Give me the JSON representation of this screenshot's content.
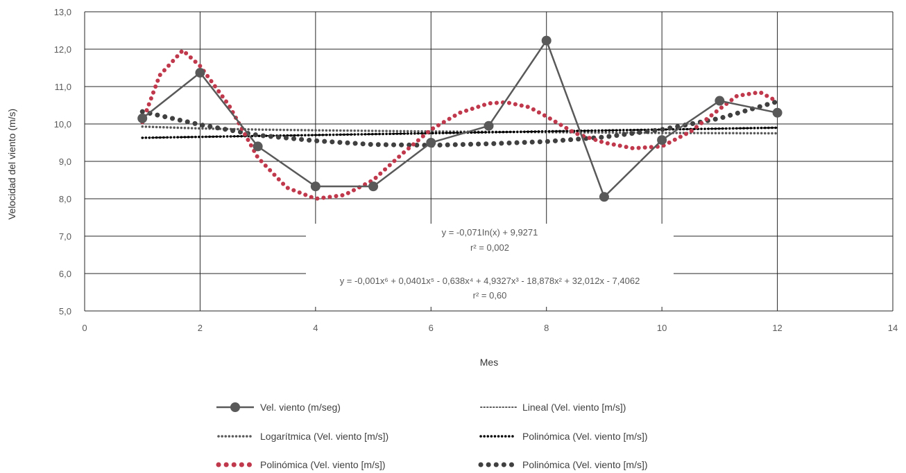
{
  "chart_data": {
    "type": "line",
    "xlabel": "Mes",
    "ylabel": "Velocidad del viento (m/s)",
    "xlim": [
      0,
      14
    ],
    "ylim": [
      5.0,
      13.0
    ],
    "x_ticks": [
      "0",
      "2",
      "4",
      "6",
      "8",
      "10",
      "12",
      "14"
    ],
    "y_ticks": [
      "5,0",
      "6,0",
      "7,0",
      "8,0",
      "9,0",
      "10,0",
      "11,0",
      "12,0",
      "13,0"
    ],
    "grid": true,
    "legend_position": "bottom",
    "series": [
      {
        "name": "Vel. viento (m/seg)",
        "kind": "data",
        "color": "#595959",
        "x": [
          1,
          2,
          3,
          4,
          5,
          6,
          7,
          8,
          9,
          10,
          11,
          12
        ],
        "y": [
          10.15,
          11.37,
          9.4,
          8.33,
          8.33,
          9.5,
          9.95,
          12.23,
          8.05,
          9.57,
          10.62,
          10.3
        ]
      },
      {
        "name": "Lineal (Vel. viento [m/s])",
        "kind": "trend",
        "color": "#000000",
        "x": [
          1,
          12
        ],
        "y": [
          9.63,
          9.9
        ]
      },
      {
        "name": "Logarítmica (Vel. viento [m/s])",
        "kind": "trend",
        "color": "#595959",
        "x": [
          1,
          2,
          3,
          4,
          6,
          8,
          10,
          12
        ],
        "y": [
          9.93,
          9.88,
          9.85,
          9.83,
          9.8,
          9.78,
          9.76,
          9.75
        ]
      },
      {
        "name": "Polinómica (Vel. viento [m/s])",
        "kind": "trend",
        "color": "#C0384B",
        "x": [
          1,
          1.3,
          1.7,
          2,
          2.5,
          3,
          3.5,
          4,
          4.5,
          5,
          5.5,
          6,
          6.5,
          7,
          7.3,
          7.7,
          8,
          8.5,
          9,
          9.5,
          10,
          10.5,
          11,
          11.3,
          11.7,
          12
        ],
        "y": [
          10.05,
          11.3,
          11.97,
          11.55,
          10.5,
          9.1,
          8.3,
          8.0,
          8.1,
          8.5,
          9.2,
          9.85,
          10.3,
          10.55,
          10.58,
          10.45,
          10.2,
          9.75,
          9.5,
          9.35,
          9.4,
          9.8,
          10.4,
          10.75,
          10.85,
          10.6
        ]
      },
      {
        "name": "Polinómica (Vel. viento [m/s])",
        "kind": "trend",
        "color": "#404040",
        "x": [
          1,
          2,
          3,
          4,
          5,
          6,
          7,
          8,
          9,
          10,
          11,
          12
        ],
        "y": [
          10.33,
          9.98,
          9.7,
          9.55,
          9.45,
          9.43,
          9.47,
          9.53,
          9.65,
          9.85,
          10.15,
          10.6
        ]
      },
      {
        "name": "Polinómica (Vel. viento [m/s])",
        "kind": "trend",
        "color": "#000000",
        "x": [
          1,
          12
        ],
        "y": [
          9.63,
          9.9
        ]
      }
    ],
    "annotations": [
      {
        "lines": [
          "y = -0,071In(x) + 9,9271",
          "r² = 0,002"
        ]
      },
      {
        "lines": [
          "y = -0,001x⁶ + 0,0401x⁵ - 0,638x⁴ + 4,9327x³ - 18,878x² + 32,012x - 7,4062",
          "r² = 0,60"
        ]
      }
    ],
    "legend": [
      {
        "label": "Vel. viento (m/seg)",
        "style": "line-marker",
        "color": "#595959"
      },
      {
        "label": "Lineal (Vel. viento [m/s])",
        "style": "fine-dots",
        "color": "#595959"
      },
      {
        "label": "Logarítmica (Vel. viento [m/s])",
        "style": "small-dots",
        "color": "#595959"
      },
      {
        "label": "Polinómica (Vel. viento [m/s])",
        "style": "small-dots",
        "color": "#000000"
      },
      {
        "label": "Polinómica (Vel. viento [m/s])",
        "style": "big-dots",
        "color": "#C0384B"
      },
      {
        "label": "Polinómica (Vel. viento [m/s])",
        "style": "big-dots",
        "color": "#404040"
      }
    ]
  }
}
